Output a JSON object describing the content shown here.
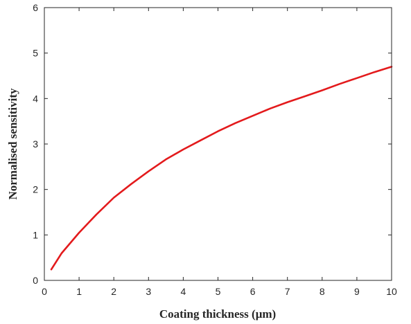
{
  "chart_data": {
    "type": "line",
    "title": "",
    "xlabel": "Coating thickness (μm)",
    "ylabel": "Normalised sensitivity",
    "xlim": [
      0,
      10
    ],
    "ylim": [
      0,
      6
    ],
    "xticks": [
      0,
      1,
      2,
      3,
      4,
      5,
      6,
      7,
      8,
      9,
      10
    ],
    "yticks": [
      0,
      1,
      2,
      3,
      4,
      5,
      6
    ],
    "grid": false,
    "legend": "none",
    "series": [
      {
        "color": "#e31a1c",
        "x": [
          0.2,
          0.5,
          1.0,
          1.5,
          2.0,
          2.5,
          3.0,
          3.5,
          4.0,
          4.5,
          5.0,
          5.5,
          6.0,
          6.5,
          7.0,
          7.5,
          8.0,
          8.5,
          9.0,
          9.5,
          10.0
        ],
        "y": [
          0.24,
          0.6,
          1.05,
          1.45,
          1.82,
          2.12,
          2.4,
          2.66,
          2.88,
          3.08,
          3.28,
          3.46,
          3.62,
          3.78,
          3.92,
          4.05,
          4.18,
          4.32,
          4.45,
          4.58,
          4.7
        ]
      }
    ]
  }
}
